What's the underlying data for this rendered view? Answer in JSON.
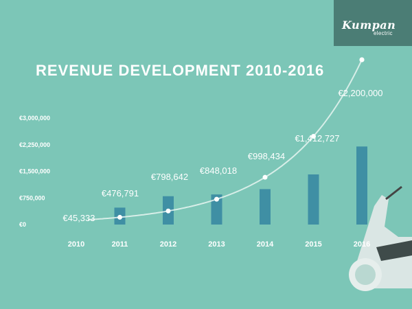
{
  "logo": {
    "brand": "Kumpan",
    "sub": "electric"
  },
  "chart_data": {
    "type": "bar",
    "title": "REVENUE DEVELOPMENT 2010-2016",
    "categories": [
      "2010",
      "2011",
      "2012",
      "2013",
      "2014",
      "2015",
      "2016"
    ],
    "values": [
      45333,
      476791,
      798642,
      848018,
      998434,
      1412727,
      2200000
    ],
    "data_labels": [
      "€45,333",
      "€476,791",
      "€798,642",
      "€848,018",
      "€998,434",
      "€1,412,727",
      "€2,200,000"
    ],
    "yticks": [
      0,
      750000,
      1500000,
      2250000,
      3000000
    ],
    "ytick_labels": [
      "€0",
      "€750,000",
      "€1,500,000",
      "€2,250,000",
      "€3,000,000"
    ],
    "ylim": [
      0,
      3000000
    ],
    "grid": false,
    "trend_curve": true,
    "colors": {
      "background": "#7cc6b7",
      "bar": "#3f8fa4",
      "text": "#ffffff",
      "logo_bg": "#4b7d75",
      "curve": "#e8f4f1"
    }
  }
}
